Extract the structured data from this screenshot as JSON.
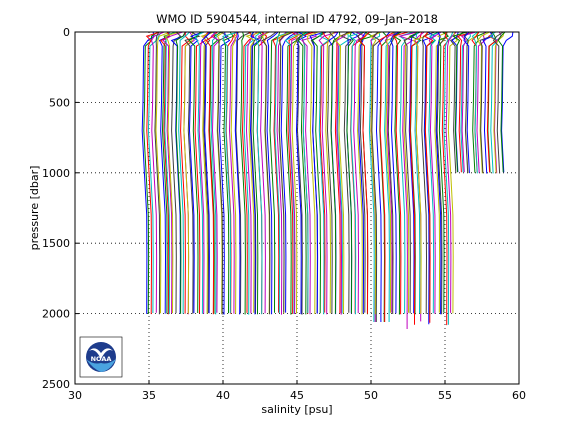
{
  "chart_data": {
    "type": "line",
    "title": "WMO ID 5904544, internal ID 4792, 09–Jan–2018",
    "xlabel": "salinity [psu]",
    "ylabel": "pressure [dbar]",
    "xlim": [
      30,
      60
    ],
    "ylim": [
      2500,
      0
    ],
    "y_inverted": true,
    "x_ticks": [
      "30",
      "35",
      "40",
      "45",
      "50",
      "55",
      "60"
    ],
    "y_ticks": [
      "0",
      "500",
      "1000",
      "1500",
      "2000",
      "2500"
    ],
    "grid": "dotted",
    "profile_count": 163,
    "profile_offset_psu": 0.15,
    "first_profile_deep_salinity": 34.8,
    "deep_end_pressure": 2000,
    "typical_profile": [
      {
        "p": 0,
        "s_offset": 0.4
      },
      {
        "p": 30,
        "s_offset": 0.1
      },
      {
        "p": 60,
        "s_offset": 0.0
      },
      {
        "p": 100,
        "s_offset": -0.1
      },
      {
        "p": 250,
        "s_offset": -0.12
      },
      {
        "p": 500,
        "s_offset": -0.15
      },
      {
        "p": 700,
        "s_offset": -0.2
      },
      {
        "p": 1000,
        "s_offset": -0.05
      },
      {
        "p": 1300,
        "s_offset": 0.1
      },
      {
        "p": 1600,
        "s_offset": 0.12
      },
      {
        "p": 2000,
        "s_offset": 0.1
      }
    ],
    "series_colors": [
      "#0000ff",
      "#008000",
      "#ff0000",
      "#00bfbf",
      "#bf00bf",
      "#bfbf00",
      "#404040"
    ]
  },
  "logo": {
    "name": "noaa-logo",
    "text": "NOAA"
  }
}
